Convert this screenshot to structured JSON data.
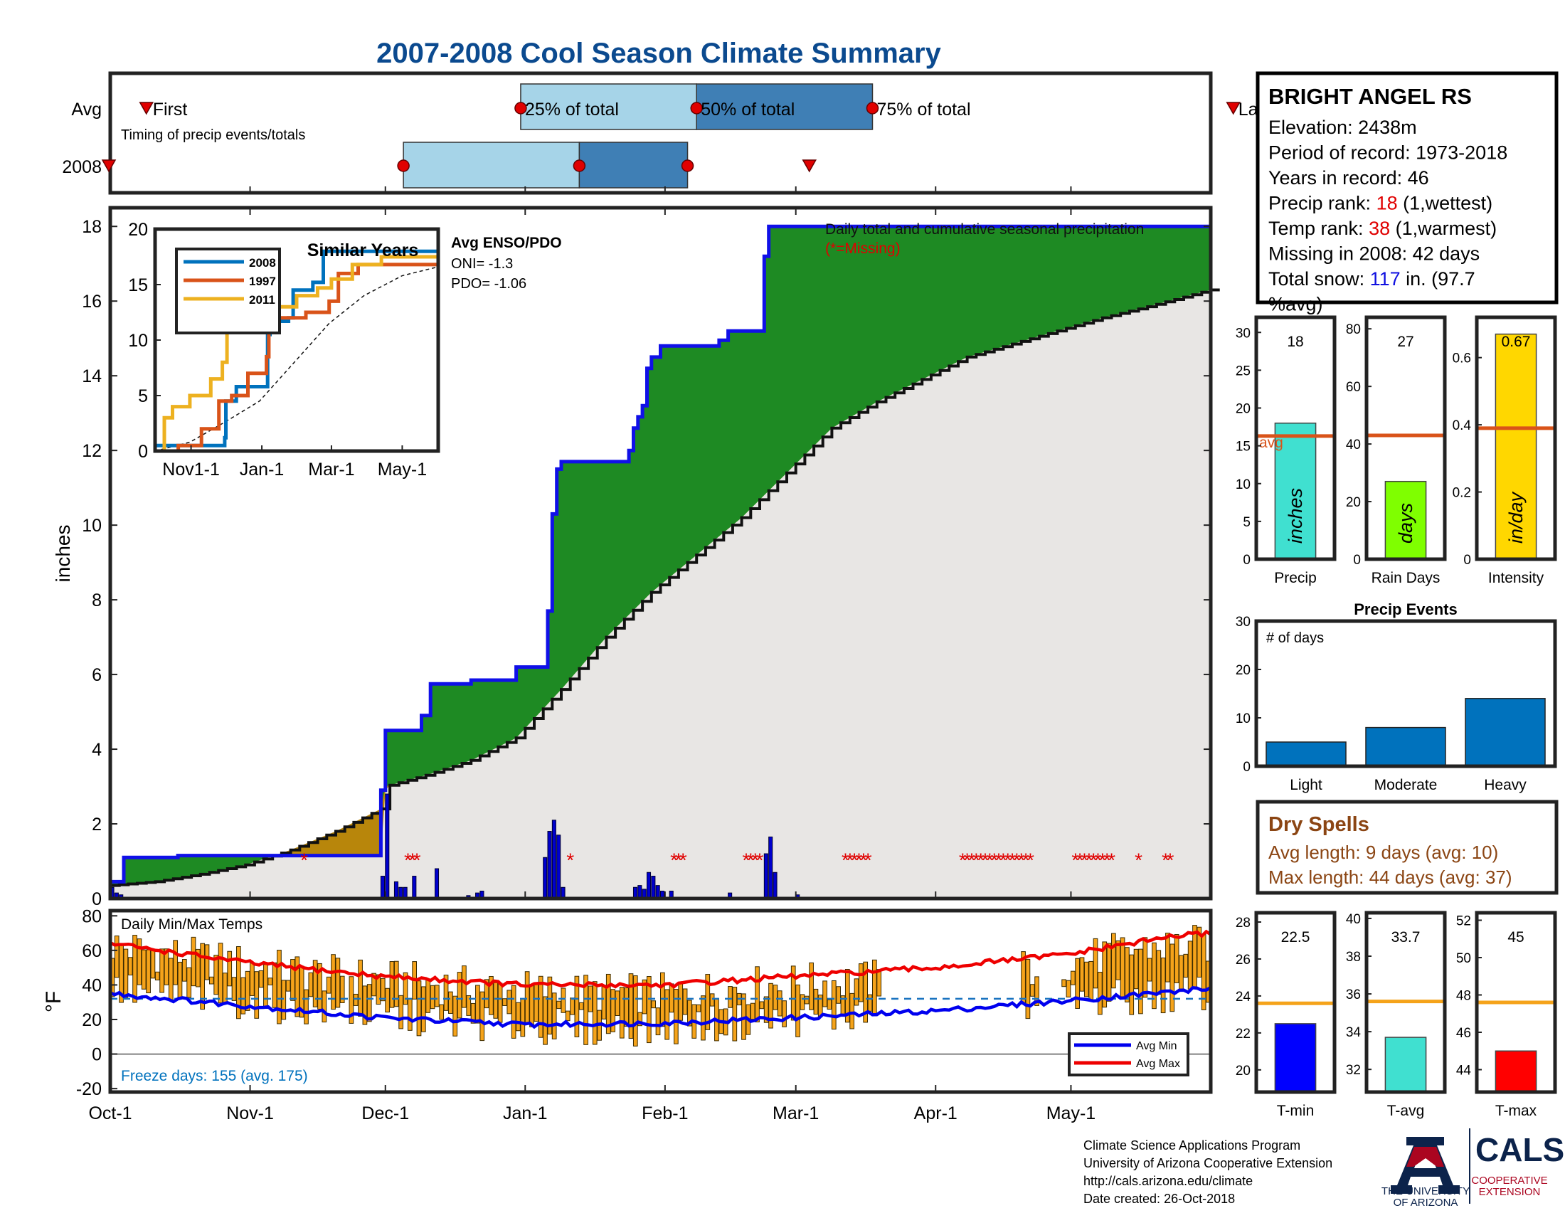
{
  "title": "2007-2008 Cool Season Climate Summary",
  "station": {
    "name": "BRIGHT ANGEL RS",
    "lines": [
      {
        "parts": [
          {
            "t": "Elevation: 2438m",
            "c": "#000"
          }
        ]
      },
      {
        "parts": [
          {
            "t": "Period of record: 1973-2018",
            "c": "#000"
          }
        ]
      },
      {
        "parts": [
          {
            "t": "Years in record: 46",
            "c": "#000"
          }
        ]
      },
      {
        "parts": [
          {
            "t": "Precip rank: ",
            "c": "#000"
          },
          {
            "t": "18",
            "c": "#e00000"
          },
          {
            "t": " (1,wettest)",
            "c": "#000"
          }
        ]
      },
      {
        "parts": [
          {
            "t": "Temp rank: ",
            "c": "#000"
          },
          {
            "t": "38",
            "c": "#e00000"
          },
          {
            "t": " (1,warmest)",
            "c": "#000"
          }
        ]
      },
      {
        "parts": [
          {
            "t": "Missing in 2008: 42 days",
            "c": "#000"
          }
        ]
      },
      {
        "parts": [
          {
            "t": "Total snow: ",
            "c": "#000"
          },
          {
            "t": "117",
            "c": "#1010e0"
          },
          {
            "t": " in. (97.7",
            "c": "#000"
          }
        ]
      },
      {
        "parts": [
          {
            "t": "%avg)",
            "c": "#000"
          }
        ]
      }
    ]
  },
  "timing": {
    "row_labels": [
      "Avg",
      "2008"
    ],
    "caption": "Timing of precip events/totals",
    "first_label": "First",
    "last_label": "Last",
    "pct25_label": "25% of total",
    "pct50_label": "50% of total",
    "pct75_label": "75% of total",
    "avg": {
      "first": 8,
      "p25": 91,
      "p50": 130,
      "p75": 169,
      "last": 249
    },
    "y2008": {
      "first": -1,
      "p25": 65,
      "p50": 104,
      "p75": 128,
      "last": 155
    }
  },
  "months": {
    "labels": [
      "Oct-1",
      "Nov-1",
      "Dec-1",
      "Jan-1",
      "Feb-1",
      "Mar-1",
      "Apr-1",
      "May-1"
    ],
    "days": [
      0,
      31,
      61,
      92,
      123,
      152,
      183,
      213
    ],
    "ndays": 244
  },
  "main_chart": {
    "ylabel": "inches",
    "ylim": [
      0,
      18.5
    ],
    "yticks": [
      0,
      2,
      4,
      6,
      8,
      10,
      12,
      14,
      16,
      18
    ],
    "legend_title": "Daily total and cumulative seasonal precipitation",
    "legend_missing": "(*=Missing)",
    "cum2008": [
      [
        0,
        0.45
      ],
      [
        3,
        0.45
      ],
      [
        3,
        1.1
      ],
      [
        15,
        1.1
      ],
      [
        15,
        1.15
      ],
      [
        60,
        1.15
      ],
      [
        60,
        2.9
      ],
      [
        61,
        2.9
      ],
      [
        61,
        4.5
      ],
      [
        69,
        4.5
      ],
      [
        69,
        4.9
      ],
      [
        71,
        4.9
      ],
      [
        71,
        5.75
      ],
      [
        80,
        5.75
      ],
      [
        80,
        5.85
      ],
      [
        90,
        5.85
      ],
      [
        90,
        6.2
      ],
      [
        97,
        6.2
      ],
      [
        97,
        7.7
      ],
      [
        98,
        7.7
      ],
      [
        98,
        10.3
      ],
      [
        99,
        10.3
      ],
      [
        99,
        11.5
      ],
      [
        100,
        11.5
      ],
      [
        100,
        11.7
      ],
      [
        115,
        11.7
      ],
      [
        115,
        12.0
      ],
      [
        116,
        12.0
      ],
      [
        116,
        12.6
      ],
      [
        117,
        12.6
      ],
      [
        117,
        12.9
      ],
      [
        118,
        12.9
      ],
      [
        118,
        13.2
      ],
      [
        119,
        13.2
      ],
      [
        119,
        14.2
      ],
      [
        120,
        14.2
      ],
      [
        120,
        14.5
      ],
      [
        122,
        14.5
      ],
      [
        122,
        14.8
      ],
      [
        135,
        14.8
      ],
      [
        135,
        14.95
      ],
      [
        137,
        14.95
      ],
      [
        137,
        15.2
      ],
      [
        145,
        15.2
      ],
      [
        145,
        17.2
      ],
      [
        146,
        17.2
      ],
      [
        146,
        18.0
      ],
      [
        244,
        18.0
      ]
    ],
    "avg_cum": [
      [
        0,
        0.35
      ],
      [
        10,
        0.45
      ],
      [
        20,
        0.65
      ],
      [
        30,
        0.9
      ],
      [
        40,
        1.3
      ],
      [
        50,
        1.8
      ],
      [
        60,
        2.4
      ],
      [
        61,
        3.0
      ],
      [
        70,
        3.3
      ],
      [
        80,
        3.7
      ],
      [
        90,
        4.3
      ],
      [
        100,
        5.6
      ],
      [
        110,
        7.0
      ],
      [
        120,
        8.2
      ],
      [
        130,
        9.2
      ],
      [
        140,
        10.2
      ],
      [
        150,
        11.4
      ],
      [
        160,
        12.6
      ],
      [
        170,
        13.3
      ],
      [
        180,
        13.9
      ],
      [
        190,
        14.5
      ],
      [
        200,
        14.85
      ],
      [
        210,
        15.2
      ],
      [
        220,
        15.55
      ],
      [
        230,
        15.85
      ],
      [
        244,
        16.3
      ]
    ],
    "daily_bars": [
      [
        0,
        0.3
      ],
      [
        1,
        0.15
      ],
      [
        2,
        0.1
      ],
      [
        60,
        0.6
      ],
      [
        61,
        2.8
      ],
      [
        63,
        0.45
      ],
      [
        64,
        0.3
      ],
      [
        65,
        0.3
      ],
      [
        67,
        0.6
      ],
      [
        72,
        0.8
      ],
      [
        79,
        0.08
      ],
      [
        81,
        0.15
      ],
      [
        82,
        0.2
      ],
      [
        96,
        1.1
      ],
      [
        97,
        1.8
      ],
      [
        98,
        2.1
      ],
      [
        99,
        1.7
      ],
      [
        100,
        0.3
      ],
      [
        116,
        0.3
      ],
      [
        117,
        0.35
      ],
      [
        118,
        0.25
      ],
      [
        119,
        0.7
      ],
      [
        120,
        0.6
      ],
      [
        121,
        0.35
      ],
      [
        122,
        0.2
      ],
      [
        124,
        0.2
      ],
      [
        137,
        0.15
      ],
      [
        145,
        1.2
      ],
      [
        146,
        1.65
      ],
      [
        147,
        0.7
      ],
      [
        152,
        0.1
      ]
    ],
    "missing_days": [
      43,
      66,
      67,
      68,
      102,
      125,
      126,
      127,
      141,
      142,
      143,
      144,
      163,
      164,
      165,
      166,
      167,
      168,
      189,
      190,
      191,
      192,
      193,
      194,
      195,
      196,
      197,
      198,
      199,
      200,
      201,
      202,
      203,
      204,
      214,
      215,
      216,
      217,
      218,
      219,
      220,
      221,
      222,
      228,
      234,
      235
    ]
  },
  "inset": {
    "title": "Similar Years",
    "legend": [
      "2008",
      "1997",
      "2011"
    ],
    "colors": [
      "#0072bd",
      "#d95319",
      "#edb120"
    ],
    "ylim": [
      0,
      20
    ],
    "yticks": [
      0,
      5,
      10,
      15,
      20
    ],
    "xtick_days": [
      31,
      92,
      152,
      213
    ],
    "xtick_labels": [
      "Nov1-1",
      "Jan-1",
      "Mar-1",
      "May-1"
    ],
    "enso_title": "Avg ENSO/PDO",
    "oni": "ONI= -1.3",
    "pdo": "PDO= -1.06",
    "series": [
      [
        [
          0,
          0.5
        ],
        [
          60,
          1.2
        ],
        [
          61,
          4.5
        ],
        [
          70,
          5.8
        ],
        [
          97,
          10.5
        ],
        [
          99,
          11.7
        ],
        [
          115,
          12
        ],
        [
          119,
          14.5
        ],
        [
          136,
          15.2
        ],
        [
          145,
          18
        ],
        [
          244,
          18
        ]
      ],
      [
        [
          0,
          0
        ],
        [
          20,
          0.5
        ],
        [
          40,
          2
        ],
        [
          55,
          4.5
        ],
        [
          66,
          5
        ],
        [
          80,
          7
        ],
        [
          96,
          8.5
        ],
        [
          98,
          11
        ],
        [
          106,
          12
        ],
        [
          130,
          12.5
        ],
        [
          150,
          13.5
        ],
        [
          158,
          16
        ],
        [
          175,
          16.8
        ],
        [
          244,
          17.2
        ]
      ],
      [
        [
          0,
          0
        ],
        [
          8,
          3
        ],
        [
          15,
          4
        ],
        [
          30,
          5
        ],
        [
          48,
          6.5
        ],
        [
          58,
          8
        ],
        [
          62,
          11
        ],
        [
          66,
          12.5
        ],
        [
          90,
          13
        ],
        [
          122,
          14
        ],
        [
          140,
          14.7
        ],
        [
          152,
          15.5
        ],
        [
          170,
          16.8
        ],
        [
          195,
          17.5
        ],
        [
          244,
          17.8
        ]
      ]
    ],
    "avg": [
      [
        0,
        0
      ],
      [
        30,
        0.8
      ],
      [
        60,
        2.6
      ],
      [
        90,
        4.5
      ],
      [
        120,
        8
      ],
      [
        150,
        11.5
      ],
      [
        180,
        14
      ],
      [
        213,
        15.8
      ],
      [
        244,
        16.6
      ]
    ]
  },
  "bars_top": [
    {
      "xlabel": "Precip",
      "value": 18,
      "value_label": "18",
      "avg": 16.3,
      "avg_label": "avg",
      "ylim": [
        0,
        32
      ],
      "yticks": [
        0,
        5,
        10,
        15,
        20,
        25,
        30
      ],
      "color": "#40e0d0",
      "unit": "inches"
    },
    {
      "xlabel": "Rain Days",
      "value": 27,
      "value_label": "27",
      "avg": 43,
      "avg_label": "",
      "ylim": [
        0,
        84
      ],
      "yticks": [
        0,
        20,
        40,
        60,
        80
      ],
      "color": "#7fff00",
      "unit": "days"
    },
    {
      "xlabel": "Intensity",
      "value": 0.67,
      "value_label": "0.67",
      "avg": 0.39,
      "avg_label": "",
      "ylim": [
        0,
        0.72
      ],
      "yticks": [
        0,
        0.2,
        0.4,
        0.6
      ],
      "color": "#ffd700",
      "unit": "in/day"
    }
  ],
  "events": {
    "title": "Precip Events",
    "ylabel_inner": "# of days",
    "categories": [
      "Light",
      "Moderate",
      "Heavy"
    ],
    "values": [
      5,
      8,
      14
    ],
    "ylim": [
      0,
      30
    ],
    "yticks": [
      0,
      10,
      20,
      30
    ]
  },
  "dry": {
    "title": "Dry Spells",
    "avg_line": "Avg length: 9 days (avg: 10)",
    "max_line": "Max length: 44 days (avg: 37)"
  },
  "temps": {
    "ylabel": "°F",
    "ylim": [
      -22,
      83
    ],
    "yticks": [
      -20,
      0,
      20,
      40,
      60,
      80
    ],
    "title": "Daily Min/Max Temps",
    "freeze": "Freeze days: 155 (avg. 175)",
    "legend": [
      "Avg Min",
      "Avg Max"
    ],
    "freeze_line": 32
  },
  "temp_bars": [
    {
      "xlabel": "T-min",
      "value": 22.5,
      "value_label": "22.5",
      "avg": 23.6,
      "ylim": [
        18.8,
        28.5
      ],
      "yticks": [
        20,
        22,
        24,
        26,
        28
      ],
      "color": "#0000ff"
    },
    {
      "xlabel": "T-avg",
      "value": 33.7,
      "value_label": "33.7",
      "avg": 35.6,
      "ylim": [
        30.8,
        40.3
      ],
      "yticks": [
        32,
        34,
        36,
        38,
        40
      ],
      "color": "#40e0d0"
    },
    {
      "xlabel": "T-max",
      "value": 45,
      "value_label": "45",
      "avg": 47.6,
      "ylim": [
        42.8,
        52.4
      ],
      "yticks": [
        44,
        46,
        48,
        50,
        52
      ],
      "color": "#ff0000"
    }
  ],
  "footer": {
    "lines": [
      "Climate Science Applications Program",
      "University of Arizona Cooperative Extension",
      "http://cals.arizona.edu/climate",
      " Date created: 26-Oct-2018"
    ],
    "ua_line1": "THE UNIVERSITY",
    "ua_line2": "OF ARIZONA",
    "cals": "CALS",
    "coop1": "COOPERATIVE",
    "coop2": "EXTENSION"
  }
}
